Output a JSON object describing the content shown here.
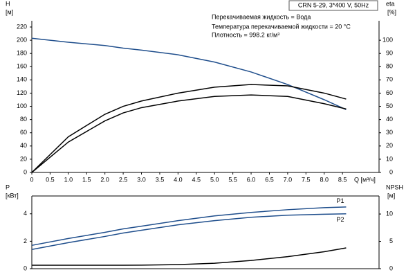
{
  "chart_data": [
    {
      "type": "line",
      "title": "CRN 5-29, 3*400 V, 50Hz",
      "annotations": [
        "Перекачиваемая жидкость = Вода",
        "Температура перекачиваемой жидкости = 20 °C",
        "Плотность = 998.2 кг/м³"
      ],
      "ylabel": "H",
      "yunit": "[м]",
      "y2label": "eta",
      "y2unit": "[%]",
      "xlabel": "Q [м³/ч]",
      "x": [
        0,
        1,
        2,
        2.5,
        3,
        4,
        5,
        6,
        7,
        8,
        8.6
      ],
      "series": [
        {
          "color": "#1f4e8c",
          "values": [
            203,
            197,
            192,
            188,
            185,
            178,
            167,
            152,
            133,
            110,
            95
          ]
        },
        {
          "color": "#000000",
          "axis": "y2",
          "values": [
            0,
            27,
            44,
            50,
            54,
            60,
            64.5,
            66.5,
            65.5,
            60,
            55.5
          ]
        },
        {
          "color": "#000000",
          "axis": "y2",
          "values": [
            0,
            23,
            39,
            45,
            49,
            54,
            57.5,
            58.6,
            57.5,
            52,
            48
          ]
        }
      ],
      "xlim": [
        0,
        9.5
      ],
      "xticks": [
        0,
        0.5,
        {
          "value": 1,
          "label": "1.0"
        },
        1.5,
        {
          "value": 2,
          "label": "2.0"
        },
        2.5,
        {
          "value": 3,
          "label": "3.0"
        },
        3.5,
        {
          "value": 4,
          "label": "4.0"
        },
        4.5,
        {
          "value": 5,
          "label": "5.0"
        },
        5.5,
        {
          "value": 6,
          "label": "6.0"
        },
        6.5,
        {
          "value": 7,
          "label": "7.0"
        },
        7.5,
        {
          "value": 8,
          "label": "8.0"
        },
        8.5
      ],
      "ylim": [
        0,
        220
      ],
      "yticks": [
        0,
        20,
        40,
        60,
        80,
        100,
        120,
        140,
        160,
        180,
        200,
        220
      ],
      "y2lim": [
        0,
        110
      ],
      "y2ticks": [
        0,
        10,
        20,
        30,
        40,
        50,
        60,
        70,
        80,
        90,
        100
      ]
    },
    {
      "type": "line",
      "ylabel": "P",
      "yunit": "[кВт]",
      "y2label": "NPSH",
      "y2unit": "[м]",
      "x": [
        0,
        1,
        2,
        2.5,
        3,
        4,
        5,
        6,
        7,
        8,
        8.6
      ],
      "series": [
        {
          "name": "P1",
          "color": "#1f4e8c",
          "values": [
            1.7,
            2.2,
            2.65,
            2.9,
            3.1,
            3.5,
            3.85,
            4.1,
            4.3,
            4.45,
            4.5
          ]
        },
        {
          "name": "P2",
          "color": "#1f4e8c",
          "values": [
            1.4,
            1.9,
            2.35,
            2.6,
            2.8,
            3.2,
            3.5,
            3.75,
            3.9,
            3.97,
            4.0
          ]
        },
        {
          "color": "#000000",
          "axis": "y2",
          "values": [
            0.63,
            0.63,
            0.63,
            0.63,
            0.65,
            0.75,
            1.0,
            1.5,
            2.2,
            3.1,
            3.8
          ]
        }
      ],
      "xlim": [
        0,
        9.5
      ],
      "ylim": [
        0,
        5.3
      ],
      "yticks": [
        0,
        2,
        4
      ],
      "y2lim": [
        0,
        13.3
      ],
      "y2ticks": [
        0,
        5,
        10
      ]
    }
  ]
}
